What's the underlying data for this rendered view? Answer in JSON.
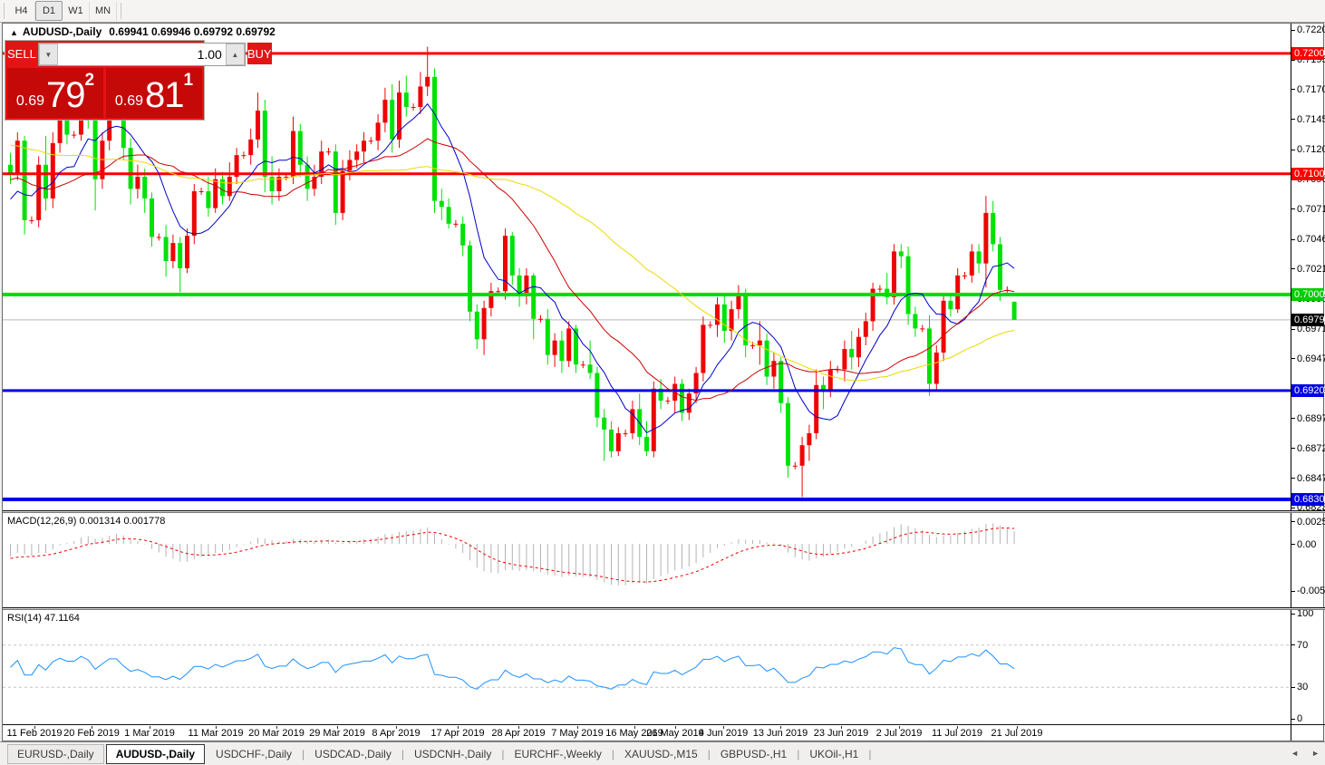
{
  "toolbar": {
    "buttons": [
      "H4",
      "D1",
      "W1",
      "MN"
    ],
    "active": "D1"
  },
  "chart_header": {
    "collapse_icon": "▲",
    "symbol": "AUDUSD-,Daily",
    "ohlc_text": "0.69941 0.69946 0.69792 0.69792"
  },
  "quote_panel": {
    "sell_label": "SELL",
    "buy_label": "BUY",
    "amount": "1.00",
    "spin_down_icon": "▼",
    "spin_up_icon": "▲",
    "sell_price": {
      "big_figure": "0.69",
      "pips": "79",
      "pip_fraction": "2"
    },
    "buy_price": {
      "big_figure": "0.69",
      "pips": "81",
      "pip_fraction": "1"
    }
  },
  "colors": {
    "bull": "#ee0404",
    "bear": "#00e206",
    "ma_fast": "#0000c8",
    "ma_mid": "#cc0000",
    "ma_slow": "#ecd902",
    "resistance": "#ff0000",
    "support": "#0000e8",
    "pivot_green": "#00dd00",
    "current_price_line": "#b8b8b8",
    "macd_hist": "#b4b4b4",
    "macd_signal": "#ee0000",
    "rsi_line": "#1e90ff"
  },
  "chart_data": [
    {
      "type": "candlestick",
      "title": "AUDUSD-,Daily",
      "timeframe": "D1",
      "current_bar": {
        "open": 0.69941,
        "high": 0.69946,
        "low": 0.69792,
        "close": 0.69792
      },
      "y_range": [
        0.68209,
        0.72253
      ],
      "y_axis_ticks": [
        "0.72200",
        "0.71950",
        "0.71705",
        "0.71455",
        "0.71205",
        "0.70960",
        "0.70710",
        "0.70460",
        "0.70215",
        "0.69965",
        "0.69715",
        "0.69470",
        "0.69220",
        "0.68970",
        "0.68725",
        "0.68475",
        "0.68230"
      ],
      "axis_badges": [
        {
          "label": "0.72005",
          "value": 0.72005,
          "bg": "#ff0000",
          "fg": "#ffffff"
        },
        {
          "label": "0.71005",
          "value": 0.71005,
          "bg": "#ff0000",
          "fg": "#ffffff"
        },
        {
          "label": "0.70002",
          "value": 0.70002,
          "bg": "#00cc00",
          "fg": "#ffffff"
        },
        {
          "label": "0.69792",
          "value": 0.69792,
          "bg": "#000000",
          "fg": "#ffffff"
        },
        {
          "label": "0.69204",
          "value": 0.69204,
          "bg": "#0000e0",
          "fg": "#ffffff"
        },
        {
          "label": "0.68300",
          "value": 0.683,
          "bg": "#0000e0",
          "fg": "#ffffff"
        }
      ],
      "horizontal_lines": [
        {
          "value": 0.72005,
          "color": "#ff0000",
          "width": 3
        },
        {
          "value": 0.71005,
          "color": "#ff0000",
          "width": 3
        },
        {
          "value": 0.70002,
          "color": "#00dd00",
          "width": 4
        },
        {
          "value": 0.69204,
          "color": "#0000e8",
          "width": 3
        },
        {
          "value": 0.683,
          "color": "#0000e8",
          "width": 4
        }
      ],
      "current_price": 0.69792,
      "moving_averages": [
        {
          "period": 8,
          "color": "#0000c8"
        },
        {
          "period": 20,
          "color": "#cc0000"
        },
        {
          "period": 45,
          "color": "#ecd902"
        }
      ],
      "x_axis": {
        "labels": [
          "11 Feb 2019",
          "20 Feb 2019",
          "1 Mar 2019",
          "11 Mar 2019",
          "20 Mar 2019",
          "29 Mar 2019",
          "8 Apr 2019",
          "17 Apr 2019",
          "28 Apr 2019",
          "7 May 2019",
          "16 May 2019",
          "26 May 2019",
          "4 Jun 2019",
          "13 Jun 2019",
          "23 Jun 2019",
          "2 Jul 2019",
          "11 Jul 2019",
          "21 Jul 2019"
        ],
        "positions": [
          35,
          98,
          162,
          235,
          302,
          369,
          434,
          502,
          569,
          634,
          697,
          742,
          795,
          858,
          925,
          989,
          1053,
          1119
        ]
      },
      "history_closes": [
        0.718,
        0.716,
        0.714,
        0.712,
        0.715,
        0.717,
        0.7185,
        0.7165,
        0.7145,
        0.713,
        0.7155,
        0.7175,
        0.719,
        0.717,
        0.715,
        0.716,
        0.714,
        0.7125,
        0.711,
        0.713,
        0.7145,
        0.716,
        0.715,
        0.7135,
        0.712,
        0.7105,
        0.7095,
        0.711,
        0.7125,
        0.714,
        0.713,
        0.7115,
        0.71,
        0.709,
        0.708,
        0.7095,
        0.7105,
        0.709,
        0.7075,
        0.7085,
        0.707,
        0.706,
        0.7075,
        0.709,
        0.708
      ],
      "ohlc": [
        [
          0.7108,
          0.7118,
          0.7092,
          0.71
        ],
        [
          0.71,
          0.7135,
          0.7095,
          0.7128
        ],
        [
          0.7128,
          0.7132,
          0.705,
          0.7062
        ],
        [
          0.7062,
          0.7065,
          0.7059,
          0.7062
        ],
        [
          0.7062,
          0.7115,
          0.7056,
          0.7108
        ],
        [
          0.7108,
          0.7132,
          0.707,
          0.708
        ],
        [
          0.708,
          0.7135,
          0.7072,
          0.7126
        ],
        [
          0.7126,
          0.7158,
          0.7118,
          0.7148
        ],
        [
          0.7148,
          0.7155,
          0.7125,
          0.7133
        ],
        [
          0.7133,
          0.7136,
          0.713,
          0.7133
        ],
        [
          0.7133,
          0.7172,
          0.7128,
          0.7162
        ],
        [
          0.7162,
          0.718,
          0.7138,
          0.7146
        ],
        [
          0.7146,
          0.715,
          0.707,
          0.7096
        ],
        [
          0.7096,
          0.7135,
          0.7088,
          0.7128
        ],
        [
          0.7128,
          0.7178,
          0.712,
          0.7161
        ],
        [
          0.7161,
          0.7164,
          0.7158,
          0.7161
        ],
        [
          0.7161,
          0.7168,
          0.7112,
          0.7122
        ],
        [
          0.7122,
          0.713,
          0.7075,
          0.7088
        ],
        [
          0.7088,
          0.7108,
          0.708,
          0.7098
        ],
        [
          0.7098,
          0.7105,
          0.7068,
          0.708
        ],
        [
          0.708,
          0.7085,
          0.704,
          0.7048
        ],
        [
          0.7048,
          0.7051,
          0.7045,
          0.7048
        ],
        [
          0.7048,
          0.7058,
          0.7015,
          0.7028
        ],
        [
          0.7028,
          0.705,
          0.7022,
          0.7043
        ],
        [
          0.7043,
          0.7048,
          0.7002,
          0.7022
        ],
        [
          0.7022,
          0.7055,
          0.7018,
          0.7049
        ],
        [
          0.7049,
          0.7092,
          0.7042,
          0.7086
        ],
        [
          0.7086,
          0.7089,
          0.7083,
          0.7086
        ],
        [
          0.7086,
          0.7098,
          0.7065,
          0.7072
        ],
        [
          0.7072,
          0.7105,
          0.7068,
          0.7096
        ],
        [
          0.7096,
          0.7102,
          0.7075,
          0.7082
        ],
        [
          0.7082,
          0.711,
          0.7078,
          0.7098
        ],
        [
          0.7098,
          0.7122,
          0.7092,
          0.7116
        ],
        [
          0.7116,
          0.7119,
          0.7113,
          0.7116
        ],
        [
          0.7116,
          0.7138,
          0.7108,
          0.7129
        ],
        [
          0.7129,
          0.7168,
          0.7122,
          0.7153
        ],
        [
          0.7153,
          0.7162,
          0.7085,
          0.7098
        ],
        [
          0.7098,
          0.7115,
          0.7075,
          0.7086
        ],
        [
          0.7086,
          0.7105,
          0.7078,
          0.7098
        ],
        [
          0.7098,
          0.7101,
          0.7095,
          0.7098
        ],
        [
          0.7098,
          0.7148,
          0.7092,
          0.7136
        ],
        [
          0.7136,
          0.7142,
          0.7098,
          0.7108
        ],
        [
          0.7108,
          0.7115,
          0.7078,
          0.7088
        ],
        [
          0.7088,
          0.7108,
          0.7082,
          0.7098
        ],
        [
          0.7098,
          0.7128,
          0.7092,
          0.7119
        ],
        [
          0.7119,
          0.7122,
          0.7116,
          0.7119
        ],
        [
          0.7119,
          0.7125,
          0.7058,
          0.7068
        ],
        [
          0.7068,
          0.7112,
          0.7062,
          0.7103
        ],
        [
          0.7103,
          0.712,
          0.7095,
          0.7112
        ],
        [
          0.7112,
          0.7125,
          0.7105,
          0.7119
        ],
        [
          0.7119,
          0.7135,
          0.711,
          0.7128
        ],
        [
          0.7128,
          0.7131,
          0.7125,
          0.7128
        ],
        [
          0.7128,
          0.715,
          0.712,
          0.7143
        ],
        [
          0.7143,
          0.7172,
          0.7135,
          0.7162
        ],
        [
          0.7162,
          0.7175,
          0.7118,
          0.7129
        ],
        [
          0.7129,
          0.7178,
          0.7122,
          0.7168
        ],
        [
          0.7168,
          0.7182,
          0.7148,
          0.7156
        ],
        [
          0.7156,
          0.7159,
          0.7153,
          0.7156
        ],
        [
          0.7156,
          0.7185,
          0.715,
          0.7173
        ],
        [
          0.7173,
          0.7206,
          0.7165,
          0.7181
        ],
        [
          0.7181,
          0.7188,
          0.7068,
          0.7078
        ],
        [
          0.7078,
          0.7088,
          0.7062,
          0.7073
        ],
        [
          0.7073,
          0.708,
          0.7055,
          0.7059
        ],
        [
          0.7059,
          0.7062,
          0.7056,
          0.7059
        ],
        [
          0.7059,
          0.7065,
          0.7032,
          0.7041
        ],
        [
          0.7041,
          0.7045,
          0.6978,
          0.6986
        ],
        [
          0.6986,
          0.6992,
          0.6955,
          0.6963
        ],
        [
          0.6963,
          0.6995,
          0.695,
          0.6989
        ],
        [
          0.6989,
          0.701,
          0.6982,
          0.7003
        ],
        [
          0.7003,
          0.7006,
          0.7,
          0.7003
        ],
        [
          0.7003,
          0.7055,
          0.6996,
          0.7049
        ],
        [
          0.7049,
          0.7052,
          0.7008,
          0.7016
        ],
        [
          0.7016,
          0.7022,
          0.699,
          0.6999
        ],
        [
          0.6999,
          0.7022,
          0.6992,
          0.7016
        ],
        [
          0.7016,
          0.7018,
          0.6963,
          0.698
        ],
        [
          0.698,
          0.6983,
          0.6977,
          0.698
        ],
        [
          0.698,
          0.6988,
          0.6942,
          0.695
        ],
        [
          0.695,
          0.6968,
          0.694,
          0.6962
        ],
        [
          0.6962,
          0.697,
          0.6935,
          0.6945
        ],
        [
          0.6945,
          0.6978,
          0.694,
          0.6972
        ],
        [
          0.6972,
          0.6975,
          0.6935,
          0.6942
        ],
        [
          0.6942,
          0.6945,
          0.6939,
          0.6942
        ],
        [
          0.6942,
          0.6962,
          0.693,
          0.6935
        ],
        [
          0.6935,
          0.694,
          0.689,
          0.6898
        ],
        [
          0.6898,
          0.6905,
          0.6862,
          0.6888
        ],
        [
          0.6888,
          0.6895,
          0.6865,
          0.687
        ],
        [
          0.687,
          0.689,
          0.6866,
          0.6885
        ],
        [
          0.6885,
          0.6888,
          0.6882,
          0.6885
        ],
        [
          0.6885,
          0.6912,
          0.688,
          0.6905
        ],
        [
          0.6905,
          0.6918,
          0.6875,
          0.6882
        ],
        [
          0.6882,
          0.6895,
          0.6866,
          0.687
        ],
        [
          0.687,
          0.6928,
          0.6865,
          0.6922
        ],
        [
          0.6922,
          0.693,
          0.6905,
          0.6912
        ],
        [
          0.6912,
          0.6915,
          0.6909,
          0.6912
        ],
        [
          0.6912,
          0.6932,
          0.6902,
          0.6926
        ],
        [
          0.6926,
          0.693,
          0.6895,
          0.6902
        ],
        [
          0.6902,
          0.6922,
          0.6896,
          0.6918
        ],
        [
          0.6918,
          0.694,
          0.691,
          0.6935
        ],
        [
          0.6935,
          0.6982,
          0.6928,
          0.6975
        ],
        [
          0.6975,
          0.6978,
          0.6972,
          0.6975
        ],
        [
          0.6975,
          0.6998,
          0.6965,
          0.6992
        ],
        [
          0.6992,
          0.7,
          0.696,
          0.697
        ],
        [
          0.697,
          0.6995,
          0.6962,
          0.6988
        ],
        [
          0.6988,
          0.7008,
          0.698,
          0.7
        ],
        [
          0.7,
          0.7005,
          0.6948,
          0.6958
        ],
        [
          0.6958,
          0.6961,
          0.6955,
          0.6958
        ],
        [
          0.6958,
          0.6978,
          0.6942,
          0.6962
        ],
        [
          0.6962,
          0.6968,
          0.6925,
          0.6932
        ],
        [
          0.6932,
          0.6952,
          0.6922,
          0.6945
        ],
        [
          0.6945,
          0.6948,
          0.6902,
          0.691
        ],
        [
          0.691,
          0.6915,
          0.6848,
          0.6858
        ],
        [
          0.6858,
          0.6861,
          0.6855,
          0.6858
        ],
        [
          0.6858,
          0.6882,
          0.6832,
          0.6875
        ],
        [
          0.6875,
          0.6892,
          0.6862,
          0.6885
        ],
        [
          0.6885,
          0.6938,
          0.688,
          0.6925
        ],
        [
          0.6925,
          0.6932,
          0.6905,
          0.692
        ],
        [
          0.692,
          0.6945,
          0.6915,
          0.6938
        ],
        [
          0.6938,
          0.6941,
          0.6935,
          0.6938
        ],
        [
          0.6938,
          0.6962,
          0.6928,
          0.6955
        ],
        [
          0.6955,
          0.697,
          0.6938,
          0.6948
        ],
        [
          0.6948,
          0.6972,
          0.694,
          0.6965
        ],
        [
          0.6965,
          0.6985,
          0.6958,
          0.6978
        ],
        [
          0.6978,
          0.701,
          0.697,
          0.7005
        ],
        [
          0.7005,
          0.7008,
          0.7002,
          0.7005
        ],
        [
          0.7005,
          0.7018,
          0.6992,
          0.6998
        ],
        [
          0.6998,
          0.7042,
          0.6992,
          0.7036
        ],
        [
          0.7036,
          0.7042,
          0.7022,
          0.7032
        ],
        [
          0.7032,
          0.704,
          0.6975,
          0.6984
        ],
        [
          0.6984,
          0.699,
          0.6965,
          0.6972
        ],
        [
          0.6972,
          0.6975,
          0.6969,
          0.6972
        ],
        [
          0.6972,
          0.6983,
          0.6916,
          0.6926
        ],
        [
          0.6926,
          0.6958,
          0.692,
          0.6952
        ],
        [
          0.6952,
          0.7,
          0.6945,
          0.6995
        ],
        [
          0.6995,
          0.7,
          0.6982,
          0.6988
        ],
        [
          0.6988,
          0.7022,
          0.6985,
          0.7016
        ],
        [
          0.7016,
          0.7019,
          0.7013,
          0.7016
        ],
        [
          0.7016,
          0.7042,
          0.701,
          0.7036
        ],
        [
          0.7036,
          0.7042,
          0.7018,
          0.7026
        ],
        [
          0.7026,
          0.7082,
          0.7006,
          0.7068
        ],
        [
          0.7068,
          0.7078,
          0.7036,
          0.7042
        ],
        [
          0.7042,
          0.7048,
          0.6995,
          0.7004
        ],
        [
          0.7004,
          0.7007,
          0.7001,
          0.7004
        ],
        [
          0.69941,
          0.69946,
          0.69792,
          0.69792
        ]
      ]
    },
    {
      "type": "bar",
      "name": "MACD(12,26,9)",
      "params": [
        12,
        26,
        9
      ],
      "value_labels": [
        "0.001314",
        "0.001778"
      ],
      "y_axis_labels": [
        "0.002522",
        "0.00",
        "-0.005234"
      ],
      "y_range": [
        -0.005234,
        0.002522
      ]
    },
    {
      "type": "line",
      "name": "RSI(14)",
      "period": 14,
      "value_label": "47.1164",
      "levels": [
        70,
        30
      ],
      "y_axis_labels": [
        "100",
        "70",
        "30",
        "0"
      ],
      "y_range": [
        0,
        100
      ]
    }
  ],
  "tabs": {
    "items": [
      "EURUSD-,Daily",
      "AUDUSD-,Daily",
      "USDCHF-,Daily",
      "USDCAD-,Daily",
      "USDCNH-,Daily",
      "EURCHF-,Weekly",
      "XAUUSD-,M15",
      "GBPUSD-,H1",
      "UKOil-,H1"
    ],
    "active": "AUDUSD-,Daily",
    "scroll_left_icon": "◄",
    "scroll_right_icon": "►"
  }
}
